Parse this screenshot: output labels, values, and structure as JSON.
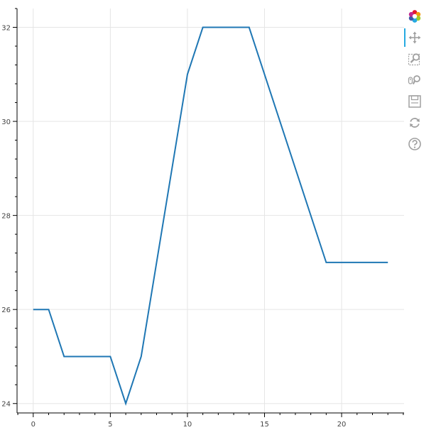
{
  "chart_data": {
    "type": "line",
    "title": "",
    "xlabel": "",
    "ylabel": "",
    "x": [
      0,
      1,
      2,
      3,
      4,
      5,
      6,
      7,
      8,
      9,
      10,
      11,
      12,
      13,
      14,
      15,
      16,
      17,
      18,
      19,
      20,
      21,
      22,
      23
    ],
    "series": [
      {
        "values": [
          26,
          26,
          25,
          25,
          25,
          25,
          24,
          25,
          27,
          29,
          31,
          32,
          32,
          32,
          32,
          31,
          30,
          29,
          28,
          27,
          27,
          27,
          27,
          27
        ],
        "color": "#1f77b4"
      }
    ],
    "xlim": [
      -1.05,
      24.05
    ],
    "ylim": [
      23.8,
      32.4
    ],
    "x_ticks": [
      0,
      5,
      10,
      15,
      20
    ],
    "x_tick_labels": [
      "0",
      "5",
      "10",
      "15",
      "20"
    ],
    "y_ticks": [
      24,
      26,
      28,
      30,
      32
    ],
    "y_tick_labels": [
      "24",
      "26",
      "28",
      "30",
      "32"
    ],
    "grid": true,
    "legend": "none"
  },
  "toolbar": {
    "tools": [
      {
        "name": "bokeh-logo-icon",
        "interactable": false
      },
      {
        "name": "pan-tool-icon",
        "interactable": true,
        "active": true
      },
      {
        "name": "box-zoom-tool-icon",
        "interactable": true
      },
      {
        "name": "wheel-zoom-tool-icon",
        "interactable": true
      },
      {
        "name": "save-tool-icon",
        "interactable": true
      },
      {
        "name": "reset-tool-icon",
        "interactable": true
      },
      {
        "name": "help-tool-icon",
        "interactable": true
      }
    ],
    "icon_color": "#a0a0a0",
    "active_color": "#26aae1"
  }
}
